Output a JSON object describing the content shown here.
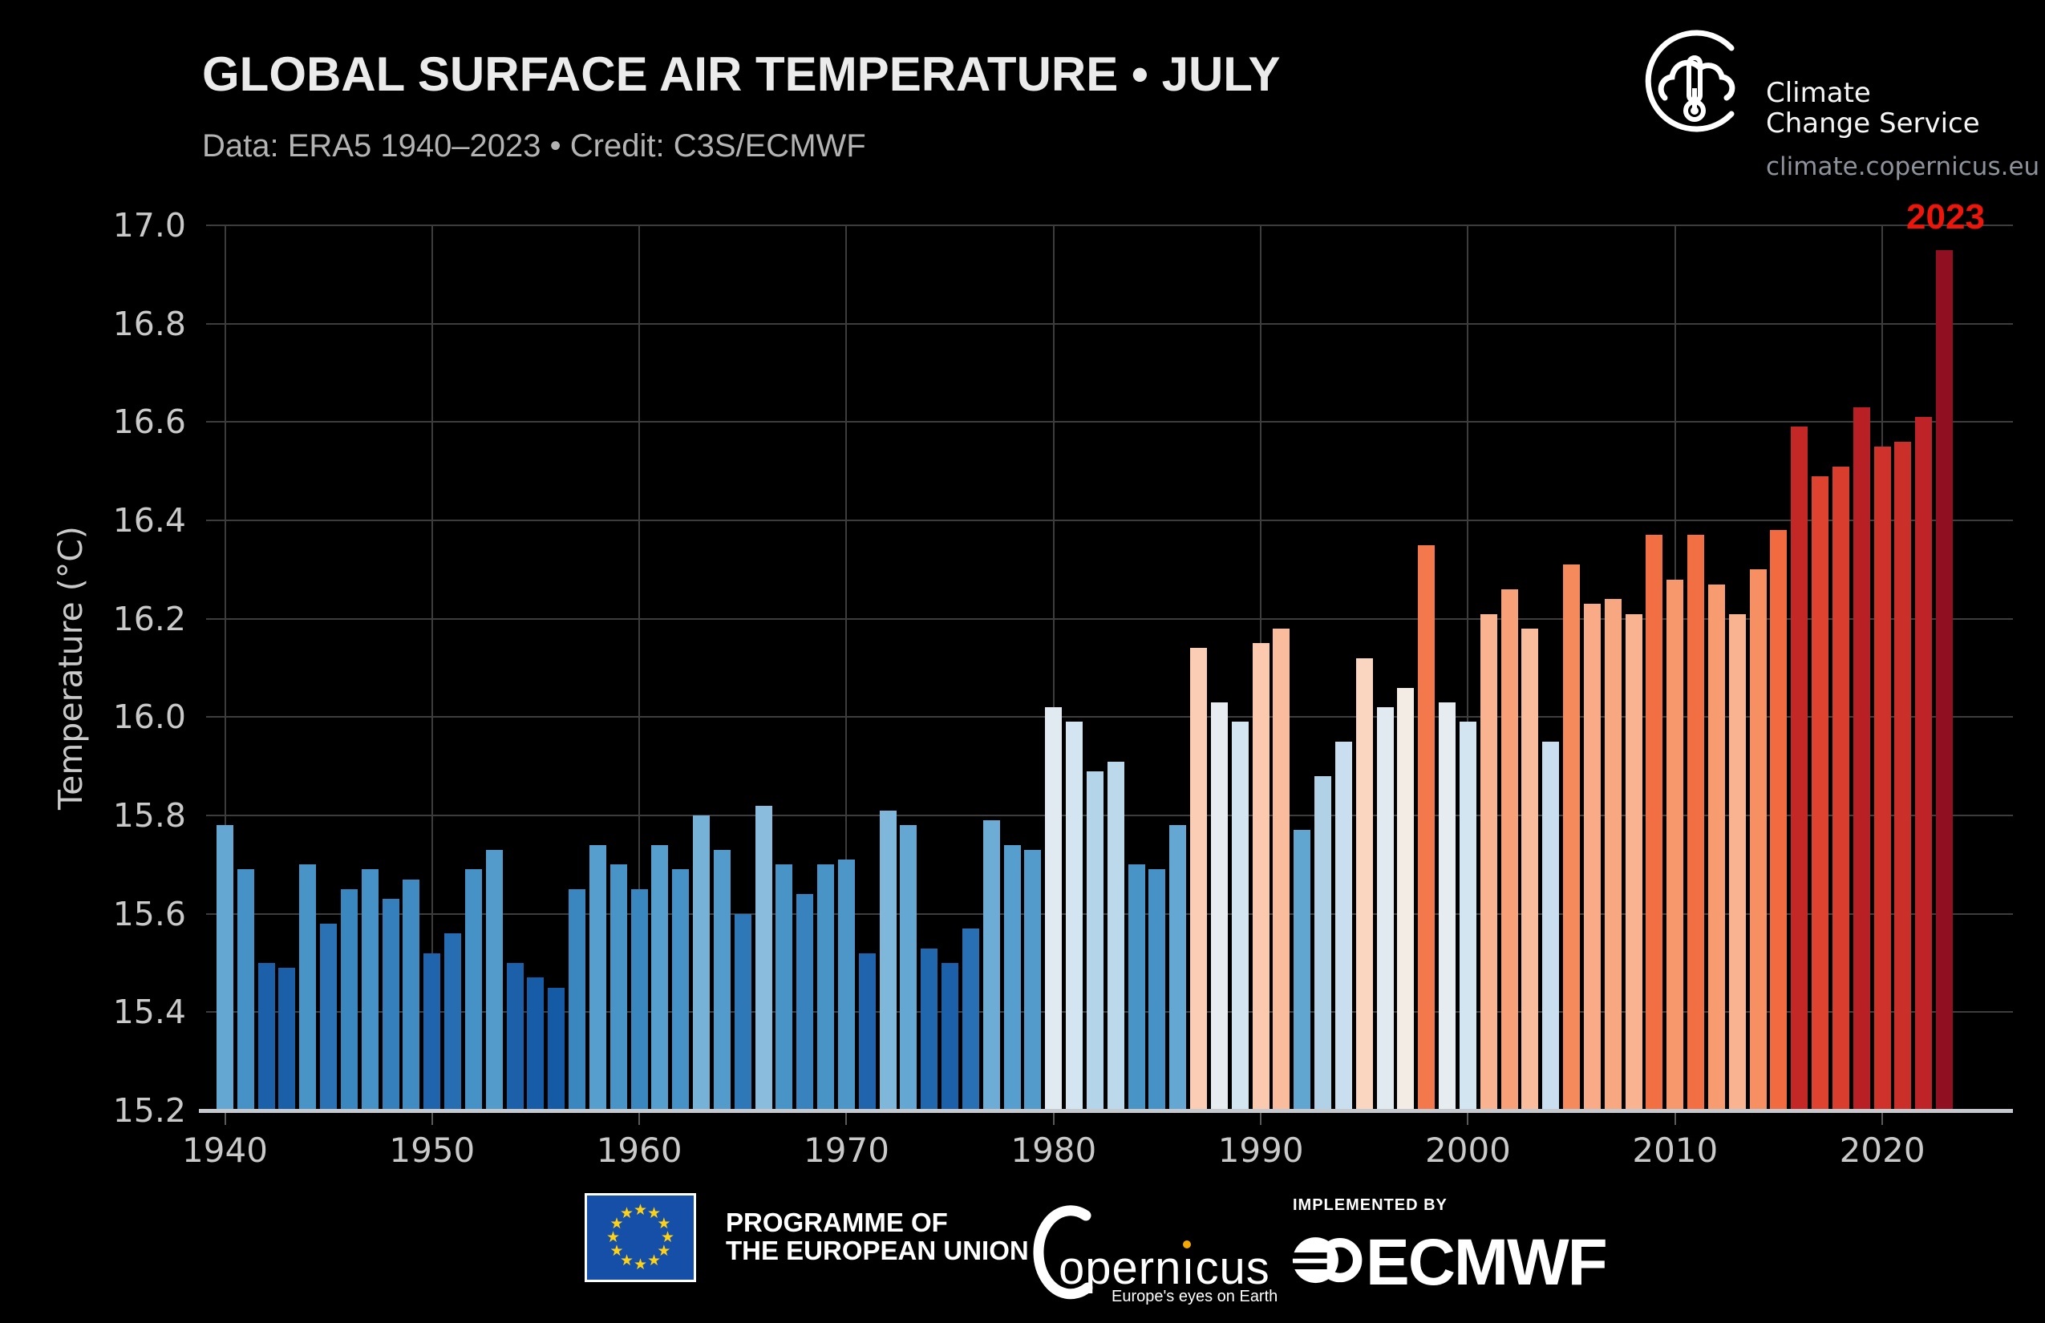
{
  "header": {
    "title": "GLOBAL SURFACE AIR TEMPERATURE • JULY",
    "subtitle": "Data: ERA5 1940–2023 • Credit: C3S/ECMWF"
  },
  "branding": {
    "logo": "c3s-cloud-thermometer-logo",
    "name_line1": "Climate",
    "name_line2": "Change Service",
    "website": "climate.copernicus.eu"
  },
  "chart_data": {
    "type": "bar",
    "title": "GLOBAL SURFACE AIR TEMPERATURE • JULY",
    "subtitle": "Data: ERA5 1940–2023 • Credit: C3S/ECMWF",
    "xlabel": "",
    "ylabel": "Temperature (°C)",
    "ylim": [
      15.2,
      17.0
    ],
    "grid": true,
    "legend_position": "none",
    "background": "#000000",
    "gridline_color": "#3d3d3d",
    "axis_text_color": "#c9c9c9",
    "baseline_color": "#c5c9cd",
    "annotation": {
      "text": "2023",
      "color": "#ee150a"
    },
    "yticks": [
      15.2,
      15.4,
      15.6,
      15.8,
      16.0,
      16.2,
      16.4,
      16.6,
      16.8,
      17.0
    ],
    "ytick_labels": [
      "15.2",
      "15.4",
      "15.6",
      "15.8",
      "16.0",
      "16.2",
      "16.4",
      "16.6",
      "16.8",
      "17.0"
    ],
    "xticks": [
      1940,
      1950,
      1960,
      1970,
      1980,
      1990,
      2000,
      2010,
      2020
    ],
    "years": [
      1940,
      1941,
      1942,
      1943,
      1944,
      1945,
      1946,
      1947,
      1948,
      1949,
      1950,
      1951,
      1952,
      1953,
      1954,
      1955,
      1956,
      1957,
      1958,
      1959,
      1960,
      1961,
      1962,
      1963,
      1964,
      1965,
      1966,
      1967,
      1968,
      1969,
      1970,
      1971,
      1972,
      1973,
      1974,
      1975,
      1976,
      1977,
      1978,
      1979,
      1980,
      1981,
      1982,
      1983,
      1984,
      1985,
      1986,
      1987,
      1988,
      1989,
      1990,
      1991,
      1992,
      1993,
      1994,
      1995,
      1996,
      1997,
      1998,
      1999,
      2000,
      2001,
      2002,
      2003,
      2004,
      2005,
      2006,
      2007,
      2008,
      2009,
      2010,
      2011,
      2012,
      2013,
      2014,
      2015,
      2016,
      2017,
      2018,
      2019,
      2020,
      2021,
      2022,
      2023
    ],
    "values": [
      15.78,
      15.69,
      15.5,
      15.49,
      15.7,
      15.58,
      15.65,
      15.69,
      15.63,
      15.67,
      15.52,
      15.56,
      15.69,
      15.73,
      15.5,
      15.47,
      15.45,
      15.65,
      15.74,
      15.7,
      15.65,
      15.74,
      15.69,
      15.8,
      15.73,
      15.6,
      15.82,
      15.7,
      15.64,
      15.7,
      15.71,
      15.52,
      15.81,
      15.78,
      15.53,
      15.5,
      15.57,
      15.79,
      15.74,
      15.73,
      16.02,
      15.99,
      15.89,
      15.91,
      15.7,
      15.69,
      15.78,
      16.14,
      16.03,
      15.99,
      16.15,
      16.18,
      15.77,
      15.88,
      15.95,
      16.12,
      16.02,
      16.06,
      16.35,
      16.03,
      15.99,
      16.21,
      16.26,
      16.18,
      15.95,
      16.31,
      16.23,
      16.24,
      16.21,
      16.37,
      16.28,
      16.37,
      16.27,
      16.21,
      16.3,
      16.38,
      16.59,
      16.49,
      16.51,
      16.63,
      16.55,
      16.56,
      16.61,
      16.95
    ],
    "colormap": [
      [
        15.4,
        "#0e54a1"
      ],
      [
        15.5,
        "#1b60a9"
      ],
      [
        15.58,
        "#2a72b4"
      ],
      [
        15.65,
        "#3a86bf"
      ],
      [
        15.72,
        "#4f99ca"
      ],
      [
        15.78,
        "#64a7d2"
      ],
      [
        15.81,
        "#7fb7da"
      ],
      [
        15.85,
        "#a5cbe4"
      ],
      [
        15.92,
        "#c0daec"
      ],
      [
        16.0,
        "#d7e6f3"
      ],
      [
        16.05,
        "#f0f0ec"
      ],
      [
        16.1,
        "#fbddcb"
      ],
      [
        16.17,
        "#f9c1a3"
      ],
      [
        16.25,
        "#f8a47c"
      ],
      [
        16.32,
        "#f58757"
      ],
      [
        16.38,
        "#f16a40"
      ],
      [
        16.45,
        "#e64f32"
      ],
      [
        16.52,
        "#d63a2c"
      ],
      [
        16.58,
        "#c62a28"
      ],
      [
        16.64,
        "#b51e25"
      ],
      [
        16.72,
        "#a51723"
      ],
      [
        16.85,
        "#971122"
      ],
      [
        17.0,
        "#8c0e20"
      ]
    ]
  },
  "footer": {
    "eu_line1": "PROGRAMME OF",
    "eu_line2": "THE EUROPEAN UNION",
    "copernicus_word_a": "opern",
    "copernicus_word_i": "ı",
    "copernicus_word_b": "cus",
    "copernicus_tagline": "Europe's eyes on Earth",
    "implemented_by": "IMPLEMENTED BY",
    "ecmwf_label": "ECMWF"
  }
}
